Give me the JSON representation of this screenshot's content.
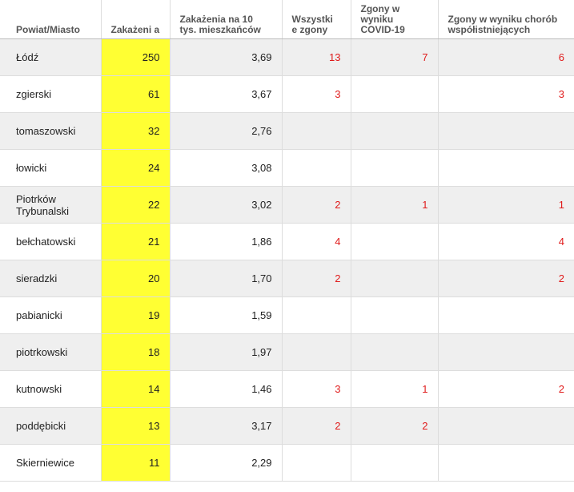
{
  "table": {
    "headers": [
      "Powiat/Miasto",
      "Zakażeni a",
      "Zakażenia na 10 tys. mieszkańców",
      "Wszystki e zgony",
      "Zgony w wyniku COVID-19",
      "Zgony w wyniku chorób współistniejących"
    ],
    "rows": [
      {
        "name": "Łódź",
        "infected": "250",
        "rate": "3,69",
        "all_deaths": "13",
        "covid_deaths": "7",
        "comorbid_deaths": "6"
      },
      {
        "name": "zgierski",
        "infected": "61",
        "rate": "3,67",
        "all_deaths": "3",
        "covid_deaths": "",
        "comorbid_deaths": "3"
      },
      {
        "name": "tomaszowski",
        "infected": "32",
        "rate": "2,76",
        "all_deaths": "",
        "covid_deaths": "",
        "comorbid_deaths": ""
      },
      {
        "name": "łowicki",
        "infected": "24",
        "rate": "3,08",
        "all_deaths": "",
        "covid_deaths": "",
        "comorbid_deaths": ""
      },
      {
        "name": "Piotrków Trybunalski",
        "infected": "22",
        "rate": "3,02",
        "all_deaths": "2",
        "covid_deaths": "1",
        "comorbid_deaths": "1"
      },
      {
        "name": "bełchatowski",
        "infected": "21",
        "rate": "1,86",
        "all_deaths": "4",
        "covid_deaths": "",
        "comorbid_deaths": "4"
      },
      {
        "name": "sieradzki",
        "infected": "20",
        "rate": "1,70",
        "all_deaths": "2",
        "covid_deaths": "",
        "comorbid_deaths": "2"
      },
      {
        "name": "pabianicki",
        "infected": "19",
        "rate": "1,59",
        "all_deaths": "",
        "covid_deaths": "",
        "comorbid_deaths": ""
      },
      {
        "name": "piotrkowski",
        "infected": "18",
        "rate": "1,97",
        "all_deaths": "",
        "covid_deaths": "",
        "comorbid_deaths": ""
      },
      {
        "name": "kutnowski",
        "infected": "14",
        "rate": "1,46",
        "all_deaths": "3",
        "covid_deaths": "1",
        "comorbid_deaths": "2"
      },
      {
        "name": "poddębicki",
        "infected": "13",
        "rate": "3,17",
        "all_deaths": "2",
        "covid_deaths": "2",
        "comorbid_deaths": ""
      },
      {
        "name": "Skierniewice",
        "infected": "11",
        "rate": "2,29",
        "all_deaths": "",
        "covid_deaths": "",
        "comorbid_deaths": ""
      }
    ]
  },
  "colors": {
    "infected_highlight": "#ffff33",
    "death_text": "#e01b1b",
    "stripe": "#efefef"
  }
}
